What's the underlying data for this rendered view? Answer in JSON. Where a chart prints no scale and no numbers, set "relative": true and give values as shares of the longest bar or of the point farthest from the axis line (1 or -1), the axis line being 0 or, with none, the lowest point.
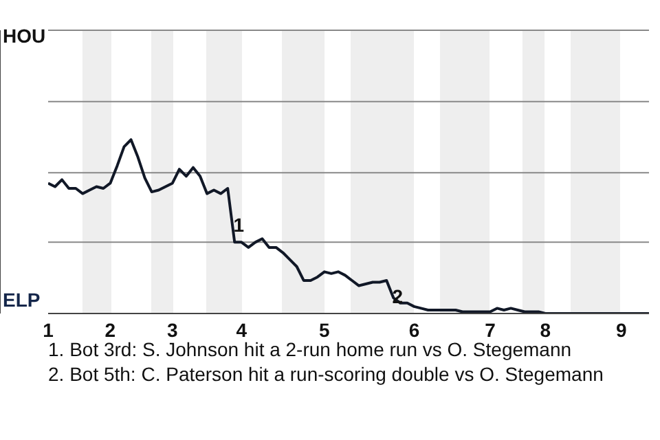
{
  "chart_data": {
    "type": "line",
    "relative": true,
    "categories": [
      "1",
      null,
      null,
      null,
      null,
      null,
      null,
      null,
      null,
      "2",
      null,
      null,
      null,
      null,
      null,
      null,
      null,
      null,
      "3",
      null,
      null,
      null,
      null,
      null,
      null,
      null,
      null,
      null,
      "4",
      null,
      null,
      null,
      null,
      null,
      null,
      null,
      null,
      null,
      null,
      null,
      "5",
      null,
      null,
      null,
      null,
      null,
      null,
      null,
      null,
      null,
      null,
      null,
      null,
      "6",
      null,
      null,
      null,
      null,
      null,
      null,
      null,
      null,
      null,
      null,
      "7",
      null,
      null,
      null,
      null,
      null,
      null,
      null,
      "8",
      null,
      null,
      null,
      null,
      null,
      null,
      null,
      null,
      null,
      null,
      "9",
      null,
      null,
      null,
      null
    ],
    "marker": "none",
    "line_style": "solid",
    "ref_lines": [
      {
        "axis": "y",
        "value": 0.41,
        "color": "#888888"
      },
      {
        "axis": "y",
        "value": 0.81,
        "color": "#888888"
      },
      {
        "axis": "y",
        "value": 1.22,
        "color": "#888888"
      },
      {
        "axis": "y",
        "value": 1.63,
        "color": "#888888"
      }
    ],
    "series": [
      {
        "color": "#111827",
        "values": [
          0.75,
          0.73,
          0.77,
          0.72,
          0.72,
          0.69,
          0.71,
          0.73,
          0.72,
          0.75,
          0.85,
          0.96,
          1,
          0.9,
          0.78,
          0.7,
          0.71,
          0.73,
          0.75,
          0.83,
          0.79,
          0.84,
          0.79,
          0.69,
          0.71,
          0.69,
          0.72,
          0.41,
          0.41,
          0.38,
          0.41,
          0.43,
          0.38,
          0.38,
          0.35,
          0.31,
          0.27,
          0.19,
          0.19,
          0.21,
          0.24,
          0.23,
          0.24,
          0.22,
          0.19,
          0.16,
          0.17,
          0.18,
          0.18,
          0.19,
          0.09,
          0.06,
          0.06,
          0.04,
          0.03,
          0.02,
          0.02,
          0.02,
          0.02,
          0.02,
          0.01,
          0.01,
          0.01,
          0.01,
          0.01,
          0.03,
          0.02,
          0.03,
          0.02,
          0.01,
          0.01,
          0.01,
          0,
          0,
          0,
          0,
          0,
          0,
          0,
          0,
          0,
          0,
          0,
          0,
          0,
          0,
          0,
          0
        ]
      }
    ],
    "annotations": [
      "HOU",
      "ELP",
      {
        "text": "1",
        "y": 0.51
      },
      {
        "text": "2",
        "y": 0.1
      },
      "1. Bot 3rd: S. Johnson hit a 2-run home run vs O. Stegemann",
      "2. Bot 5th: C. Paterson hit a run-scoring double vs O. Stegemann"
    ]
  }
}
